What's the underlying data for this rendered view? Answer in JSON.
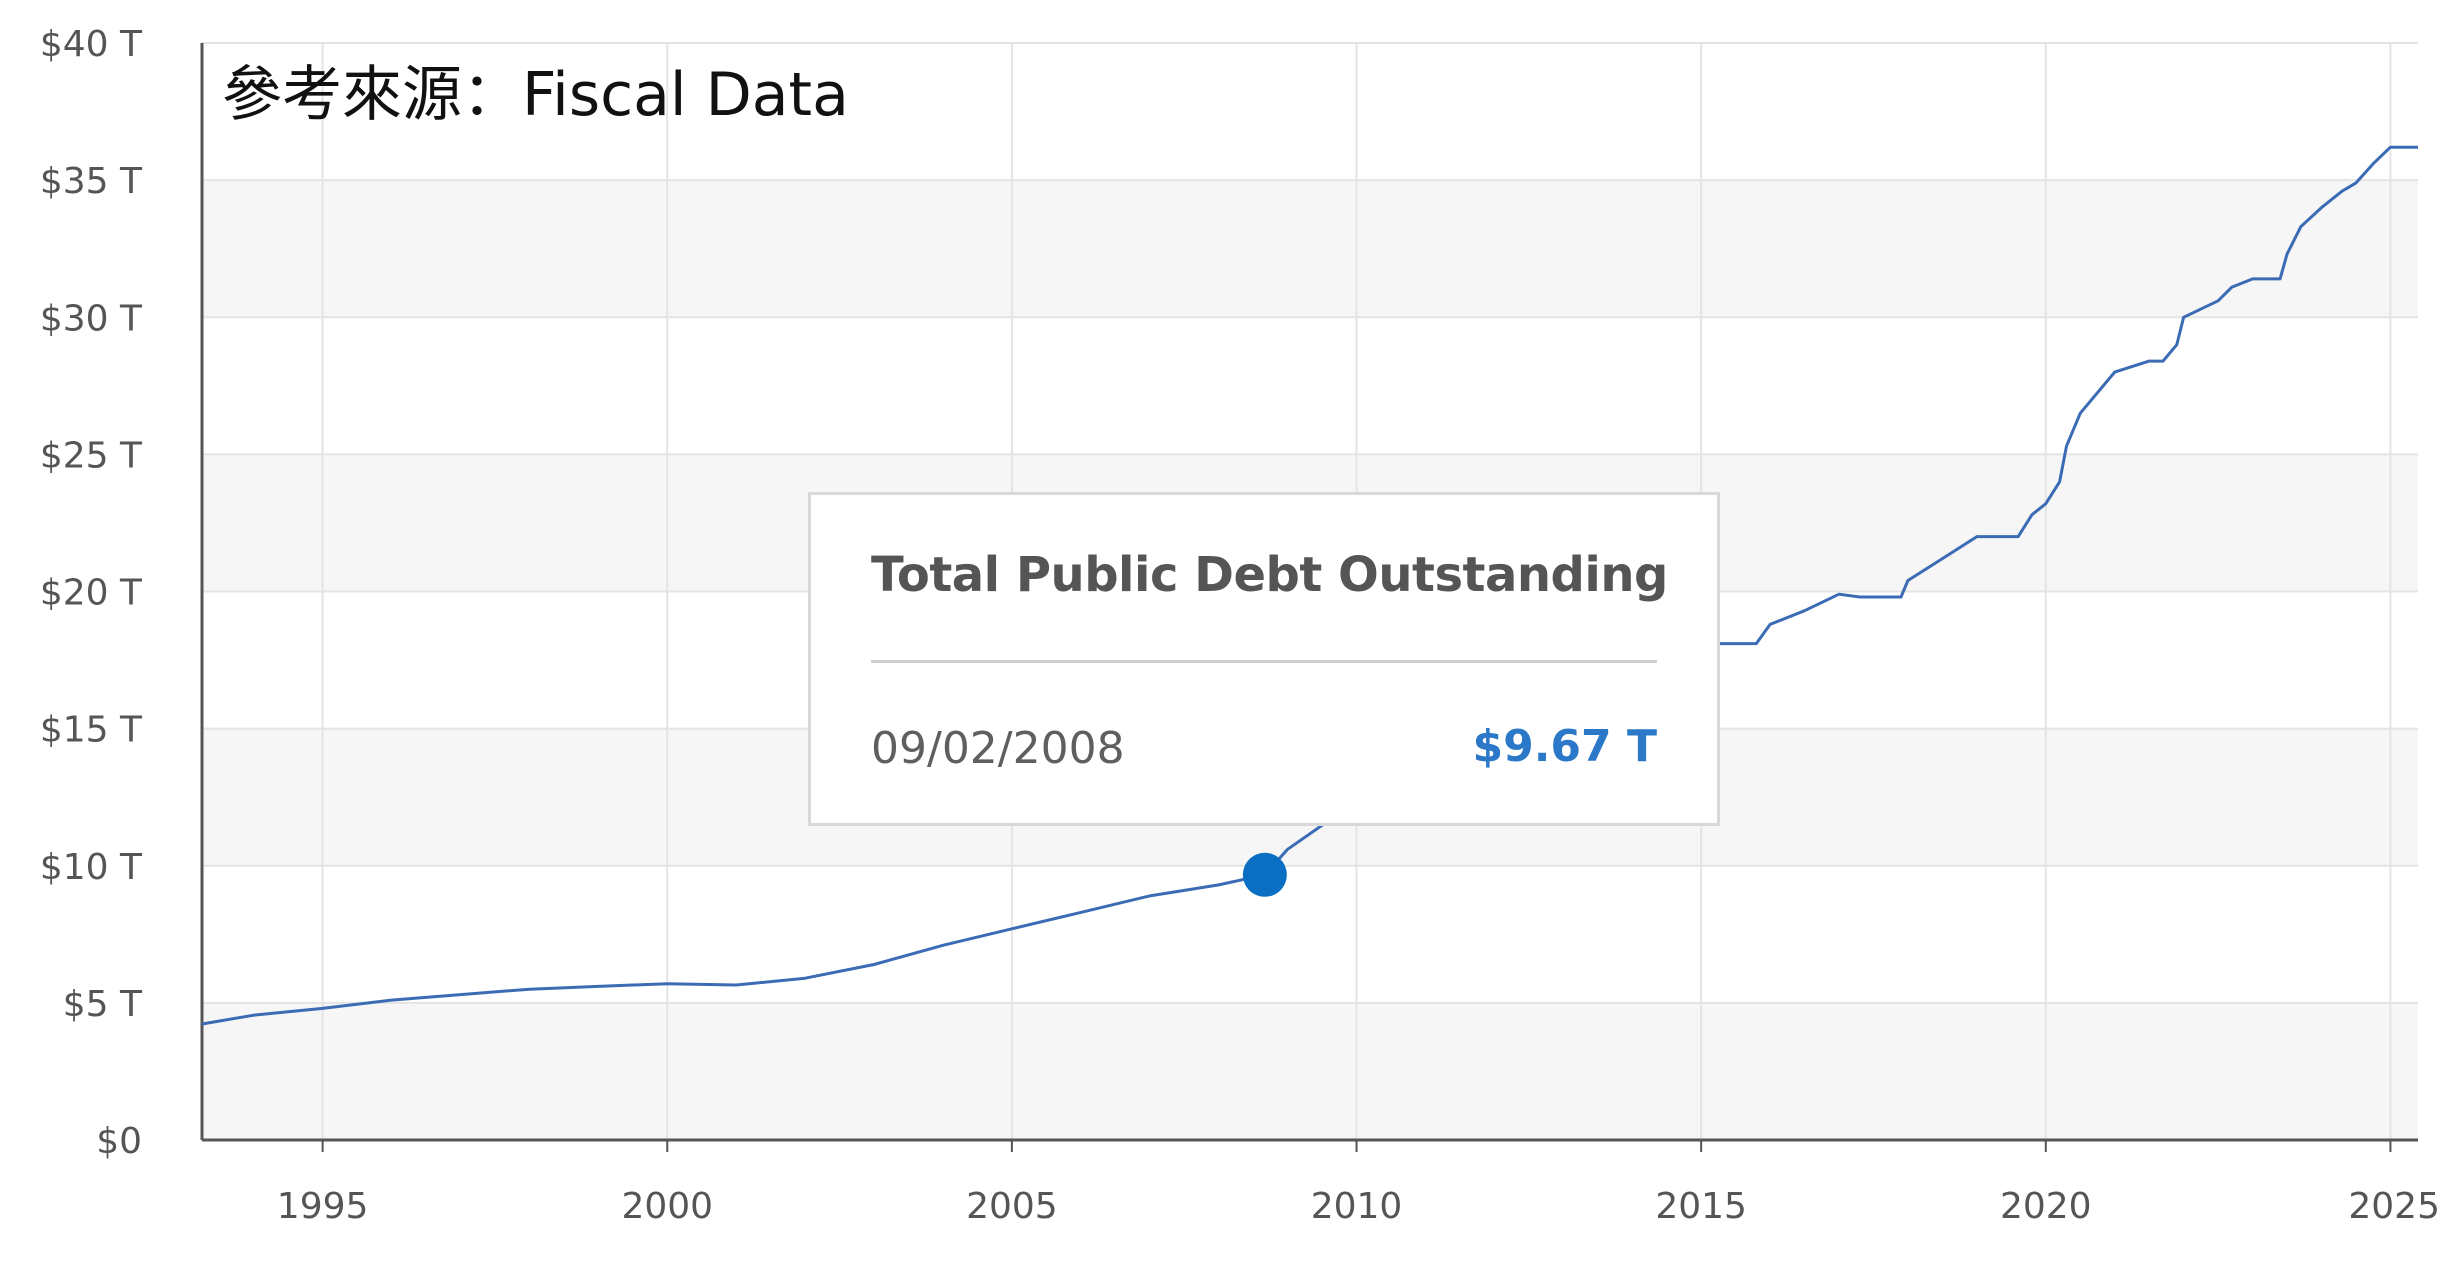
{
  "source_note": "參考來源：Fiscal Data",
  "colors": {
    "line": "#3b6bb5",
    "marker": "#0a6fc2",
    "band": "#f6f6f6",
    "grid": "#e4e4e4",
    "axis": "#555555",
    "tooltip_value": "#2b78c9"
  },
  "tooltip": {
    "title": "Total Public Debt Outstanding",
    "date": "09/02/2008",
    "value": "$9.67 T"
  },
  "chart_data": {
    "type": "line",
    "title": "",
    "xlabel": "",
    "ylabel": "",
    "x_ticks": [
      1995,
      2000,
      2005,
      2010,
      2015,
      2020,
      2025
    ],
    "y_ticks": [
      {
        "value": 0,
        "label": "$0"
      },
      {
        "value": 5,
        "label": "$5 T"
      },
      {
        "value": 10,
        "label": "$10 T"
      },
      {
        "value": 15,
        "label": "$15 T"
      },
      {
        "value": 20,
        "label": "$20 T"
      },
      {
        "value": 25,
        "label": "$25 T"
      },
      {
        "value": 30,
        "label": "$30 T"
      },
      {
        "value": 35,
        "label": "$35 T"
      },
      {
        "value": 40,
        "label": "$40 T"
      }
    ],
    "xlim": [
      1993.25,
      2025.4
    ],
    "ylim": [
      0,
      40
    ],
    "grid": true,
    "highlight": {
      "x": 2008.67,
      "y": 9.67
    },
    "series": [
      {
        "unit": "trillion USD",
        "points": [
          [
            1993.25,
            4.23
          ],
          [
            1994.0,
            4.55
          ],
          [
            1995.0,
            4.8
          ],
          [
            1996.0,
            5.1
          ],
          [
            1997.0,
            5.3
          ],
          [
            1998.0,
            5.5
          ],
          [
            1999.0,
            5.6
          ],
          [
            2000.0,
            5.7
          ],
          [
            2001.0,
            5.65
          ],
          [
            2002.0,
            5.9
          ],
          [
            2003.0,
            6.4
          ],
          [
            2004.0,
            7.1
          ],
          [
            2005.0,
            7.7
          ],
          [
            2006.0,
            8.3
          ],
          [
            2007.0,
            8.9
          ],
          [
            2008.0,
            9.3
          ],
          [
            2008.67,
            9.67
          ],
          [
            2009.0,
            10.6
          ],
          [
            2009.8,
            12.0
          ],
          [
            2010.5,
            13.0
          ],
          [
            2011.0,
            14.2
          ],
          [
            2011.6,
            14.3
          ],
          [
            2012.0,
            15.2
          ],
          [
            2013.0,
            16.4
          ],
          [
            2013.4,
            16.7
          ],
          [
            2013.8,
            16.7
          ],
          [
            2014.0,
            17.3
          ],
          [
            2014.5,
            17.7
          ],
          [
            2015.0,
            18.1
          ],
          [
            2015.8,
            18.1
          ],
          [
            2016.0,
            18.8
          ],
          [
            2016.5,
            19.3
          ],
          [
            2017.0,
            19.9
          ],
          [
            2017.3,
            19.8
          ],
          [
            2017.9,
            19.8
          ],
          [
            2018.0,
            20.4
          ],
          [
            2018.5,
            21.2
          ],
          [
            2019.0,
            22.0
          ],
          [
            2019.5,
            22.0
          ],
          [
            2019.6,
            22.0
          ],
          [
            2019.8,
            22.8
          ],
          [
            2020.0,
            23.2
          ],
          [
            2020.2,
            24.0
          ],
          [
            2020.3,
            25.3
          ],
          [
            2020.5,
            26.5
          ],
          [
            2021.0,
            28.0
          ],
          [
            2021.5,
            28.4
          ],
          [
            2021.7,
            28.4
          ],
          [
            2021.9,
            29.0
          ],
          [
            2022.0,
            30.0
          ],
          [
            2022.5,
            30.6
          ],
          [
            2022.7,
            31.1
          ],
          [
            2023.0,
            31.4
          ],
          [
            2023.4,
            31.4
          ],
          [
            2023.5,
            32.3
          ],
          [
            2023.7,
            33.3
          ],
          [
            2024.0,
            34.0
          ],
          [
            2024.3,
            34.6
          ],
          [
            2024.5,
            34.9
          ],
          [
            2024.75,
            35.6
          ],
          [
            2025.0,
            36.2
          ],
          [
            2025.4,
            36.2
          ]
        ]
      }
    ]
  }
}
